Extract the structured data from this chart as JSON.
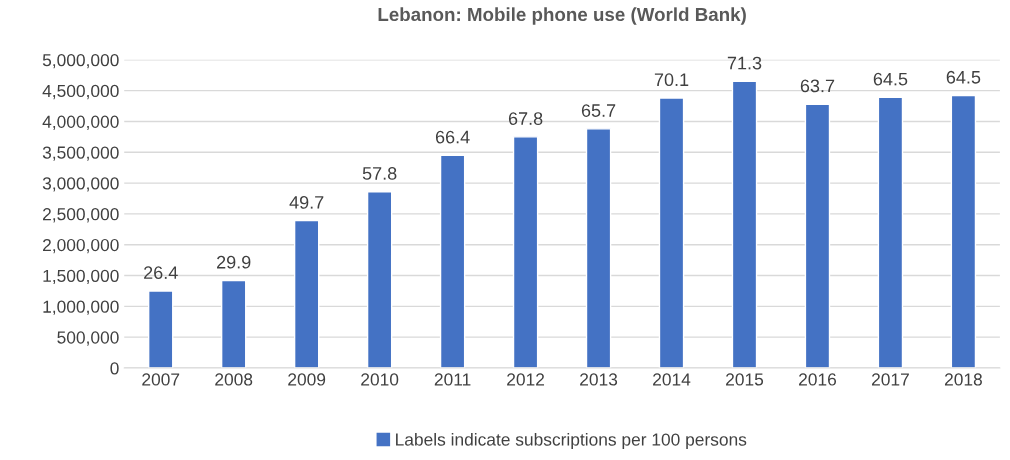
{
  "chart_data": {
    "type": "bar",
    "title": "Lebanon: Mobile phone use (World Bank)",
    "categories": [
      "2007",
      "2008",
      "2009",
      "2010",
      "2011",
      "2012",
      "2013",
      "2014",
      "2015",
      "2016",
      "2017",
      "2018"
    ],
    "series": [
      {
        "name": "Labels indicate subscriptions per 100 persons",
        "color": "#4472c4",
        "values": [
          1250000,
          1420000,
          2390000,
          2860000,
          3450000,
          3750000,
          3880000,
          4380000,
          4650000,
          4280000,
          4390000,
          4420000
        ]
      }
    ],
    "annotations": [
      {
        "text": "26.4",
        "x": "2007",
        "y": 1250000
      },
      {
        "text": "29.9",
        "x": "2008",
        "y": 1420000
      },
      {
        "text": "49.7",
        "x": "2009",
        "y": 2390000
      },
      {
        "text": "57.8",
        "x": "2010",
        "y": 2860000
      },
      {
        "text": "66.4",
        "x": "2011",
        "y": 3450000
      },
      {
        "text": "67.8",
        "x": "2012",
        "y": 3750000
      },
      {
        "text": "65.7",
        "x": "2013",
        "y": 3880000
      },
      {
        "text": "70.1",
        "x": "2014",
        "y": 4380000
      },
      {
        "text": "71.3",
        "x": "2015",
        "y": 4650000
      },
      {
        "text": "63.7",
        "x": "2016",
        "y": 4280000
      },
      {
        "text": "64.5",
        "x": "2017",
        "y": 4390000
      },
      {
        "text": "64.5",
        "x": "2018",
        "y": 4420000
      }
    ],
    "ylim": [
      0,
      5000000
    ],
    "yticks": [
      {
        "value": 0,
        "label": "0"
      },
      {
        "value": 500000,
        "label": "500,000"
      },
      {
        "value": 1000000,
        "label": "1,000,000"
      },
      {
        "value": 1500000,
        "label": "1,500,000"
      },
      {
        "value": 2000000,
        "label": "2,000,000"
      },
      {
        "value": 2500000,
        "label": "2,500,000"
      },
      {
        "value": 3000000,
        "label": "3,000,000"
      },
      {
        "value": 3500000,
        "label": "3,500,000"
      },
      {
        "value": 4000000,
        "label": "4,000,000"
      },
      {
        "value": 4500000,
        "label": "4,500,000"
      },
      {
        "value": 5000000,
        "label": "5,000,000"
      }
    ],
    "grid": "y",
    "legend": "bottom"
  }
}
